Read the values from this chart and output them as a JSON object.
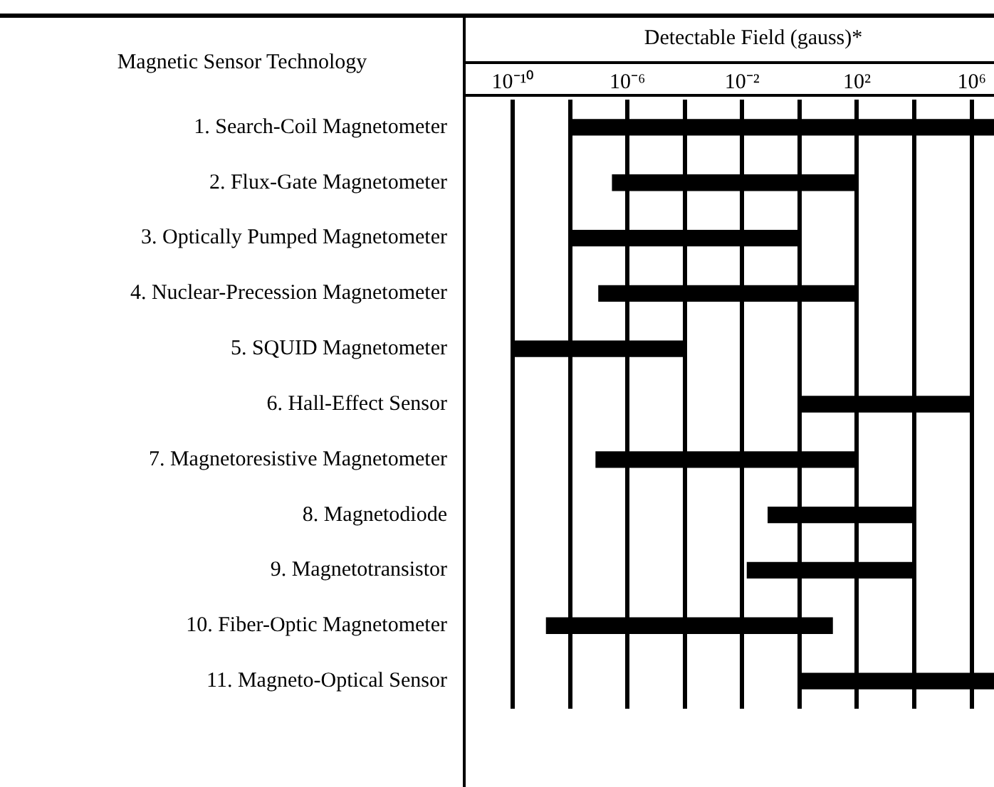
{
  "chart_data": {
    "type": "bar",
    "orientation": "horizontal",
    "log": "x",
    "grid": "x",
    "legend": false,
    "xlabel": "Detectable Field (gauss)*",
    "annotations": [
      "Magnetic Sensor Technology"
    ],
    "categories": [
      "1. Search-Coil Magnetometer",
      "2. Flux-Gate Magnetometer",
      "3. Optically Pumped Magnetometer",
      "4. Nuclear-Precession Magnetometer",
      "5. SQUID Magnetometer",
      "6. Hall-Effect Sensor",
      "7. Magnetoresistive Magnetometer",
      "8. Magnetodiode",
      "9. Magnetotransistor",
      "10. Fiber-Optic Magnetometer",
      "11. Magneto-Optical Sensor"
    ],
    "base": [
      1e-08,
      3e-07,
      1e-08,
      1e-07,
      1e-10,
      1,
      8e-08,
      0.08,
      0.015,
      1.5e-09,
      1
    ],
    "values": [
      5999999.99999999,
      99.9999997,
      0.99999999,
      99.9999999,
      9.99999e-05,
      999999,
      99.99999992,
      9999.92,
      9999.985,
      13.9999999985,
      5999999
    ],
    "color": "#000000",
    "xlim": [
      1e-10,
      6000000.0
    ],
    "xticks": [
      {
        "value": 1e-10,
        "label": "10⁻¹⁰"
      },
      {
        "value": 1e-08,
        "label": null
      },
      {
        "value": 1e-06,
        "label": "10⁻⁶"
      },
      {
        "value": 0.0001,
        "label": null
      },
      {
        "value": 0.01,
        "label": "10⁻²"
      },
      {
        "value": 1,
        "label": null
      },
      {
        "value": 100,
        "label": "10²"
      },
      {
        "value": 10000,
        "label": null
      },
      {
        "value": 1000000,
        "label": "10⁶"
      }
    ]
  }
}
